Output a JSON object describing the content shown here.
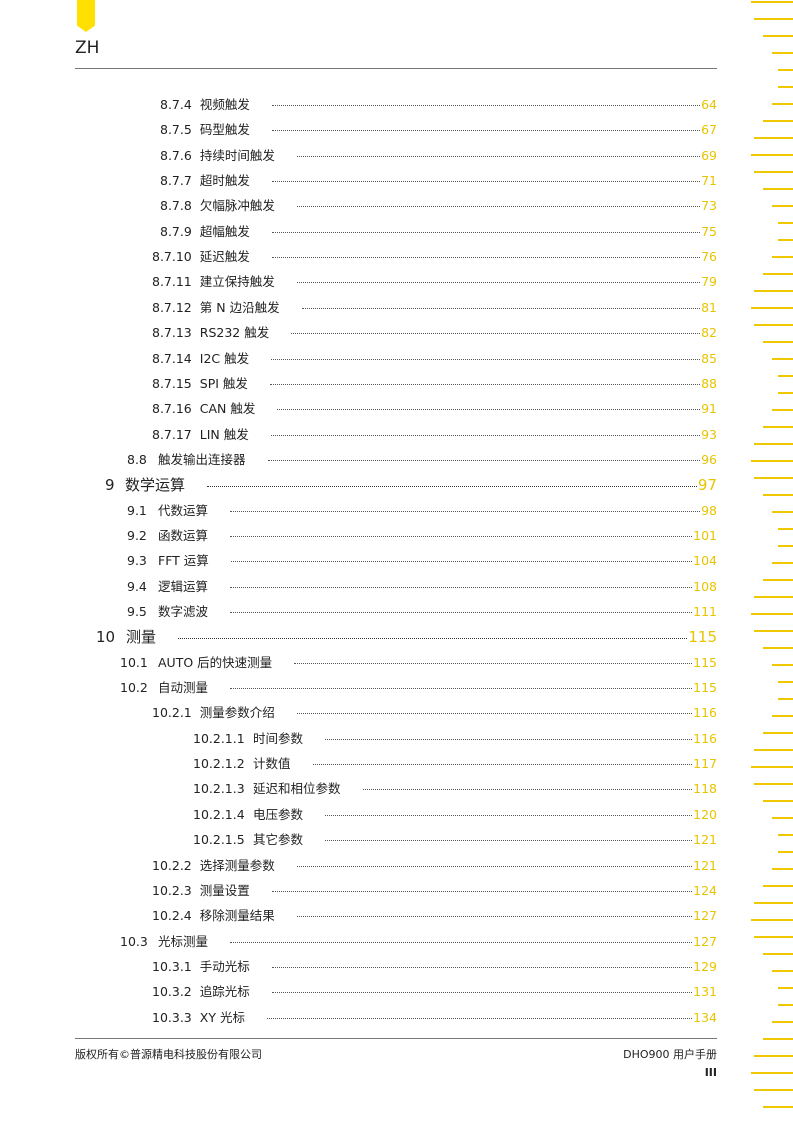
{
  "header": {
    "language": "ZH"
  },
  "colors": {
    "accent": "#ffe000",
    "page_number": "#e8c400"
  },
  "toc": [
    {
      "level": 3,
      "number": "8.7.4",
      "title": "视频触发",
      "page": "64"
    },
    {
      "level": 3,
      "number": "8.7.5",
      "title": "码型触发",
      "page": "67"
    },
    {
      "level": 3,
      "number": "8.7.6",
      "title": "持续时间触发",
      "page": "69"
    },
    {
      "level": 3,
      "number": "8.7.7",
      "title": "超时触发",
      "page": "71"
    },
    {
      "level": 3,
      "number": "8.7.8",
      "title": "欠幅脉冲触发",
      "page": "73"
    },
    {
      "level": 3,
      "number": "8.7.9",
      "title": "超幅触发",
      "page": "75"
    },
    {
      "level": 3,
      "number": "8.7.10",
      "title": "延迟触发",
      "page": "76"
    },
    {
      "level": 3,
      "number": "8.7.11",
      "title": "建立保持触发",
      "page": "79"
    },
    {
      "level": 3,
      "number": "8.7.12",
      "title": "第 N 边沿触发",
      "page": "81"
    },
    {
      "level": 3,
      "number": "8.7.13",
      "title": "RS232 触发",
      "page": "82"
    },
    {
      "level": 3,
      "number": "8.7.14",
      "title": "I2C 触发",
      "page": "85"
    },
    {
      "level": 3,
      "number": "8.7.15",
      "title": "SPI 触发",
      "page": "88"
    },
    {
      "level": 3,
      "number": "8.7.16",
      "title": "CAN 触发",
      "page": "91"
    },
    {
      "level": 3,
      "number": "8.7.17",
      "title": "LIN 触发",
      "page": "93"
    },
    {
      "level": 2,
      "number": "8.8",
      "title": "触发输出连接器",
      "page": "96"
    },
    {
      "level": 1,
      "number": "9",
      "title": "数学运算",
      "page": "97"
    },
    {
      "level": 2,
      "number": "9.1",
      "title": "代数运算",
      "page": "98"
    },
    {
      "level": 2,
      "number": "9.2",
      "title": "函数运算",
      "page": "101"
    },
    {
      "level": 2,
      "number": "9.3",
      "title": "FFT 运算",
      "page": "104"
    },
    {
      "level": 2,
      "number": "9.4",
      "title": "逻辑运算",
      "page": "108"
    },
    {
      "level": 2,
      "number": "9.5",
      "title": "数字滤波",
      "page": "111"
    },
    {
      "level": 1,
      "number": "10",
      "title": "测量",
      "page": "115"
    },
    {
      "level": 2,
      "number": "10.1",
      "title": "AUTO 后的快速测量",
      "page": "115"
    },
    {
      "level": 2,
      "number": "10.2",
      "title": "自动测量",
      "page": "115"
    },
    {
      "level": 3,
      "number": "10.2.1",
      "title": "测量参数介绍",
      "page": "116"
    },
    {
      "level": 4,
      "number": "10.2.1.1",
      "title": "时间参数",
      "page": "116"
    },
    {
      "level": 4,
      "number": "10.2.1.2",
      "title": "计数值",
      "page": "117"
    },
    {
      "level": 4,
      "number": "10.2.1.3",
      "title": "延迟和相位参数",
      "page": "118"
    },
    {
      "level": 4,
      "number": "10.2.1.4",
      "title": "电压参数",
      "page": "120"
    },
    {
      "level": 4,
      "number": "10.2.1.5",
      "title": "其它参数",
      "page": "121"
    },
    {
      "level": 3,
      "number": "10.2.2",
      "title": "选择测量参数",
      "page": "121"
    },
    {
      "level": 3,
      "number": "10.2.3",
      "title": "测量设置",
      "page": "124"
    },
    {
      "level": 3,
      "number": "10.2.4",
      "title": "移除测量结果",
      "page": "127"
    },
    {
      "level": 2,
      "number": "10.3",
      "title": "光标测量",
      "page": "127"
    },
    {
      "level": 3,
      "number": "10.3.1",
      "title": "手动光标",
      "page": "129"
    },
    {
      "level": 3,
      "number": "10.3.2",
      "title": "追踪光标",
      "page": "131"
    },
    {
      "level": 3,
      "number": "10.3.3",
      "title": "XY 光标",
      "page": "134"
    }
  ],
  "footer": {
    "copyright": "版权所有©普源精电科技股份有限公司",
    "manual": "DHO900 用户手册",
    "page": "III"
  }
}
